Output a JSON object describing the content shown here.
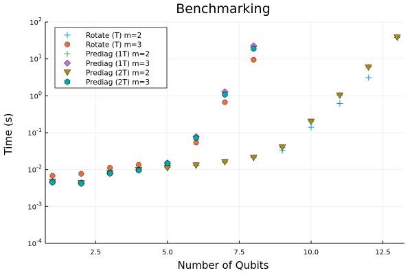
{
  "chart_data": {
    "type": "scatter",
    "title": "Benchmarking",
    "xlabel": "Number of Qubits",
    "ylabel": "Time (s)",
    "xlim": [
      0.75,
      13.25
    ],
    "ylim_log10": [
      -4,
      2
    ],
    "yscale": "log",
    "grid": true,
    "legend_position": "top-left",
    "x_ticks": [
      2.5,
      5.0,
      7.5,
      10.0,
      12.5
    ],
    "x_tick_labels": [
      "2.5",
      "5.0",
      "7.5",
      "10.0",
      "12.5"
    ],
    "y_ticks": [
      0.0001,
      0.001,
      0.01,
      0.1,
      1,
      10,
      100
    ],
    "y_tick_exponents": [
      "-4",
      "-3",
      "-2",
      "-1",
      "0",
      "1",
      "2"
    ],
    "y_tick_base": "10",
    "series": [
      {
        "name": "Rotate (T) m=2",
        "marker": "plus",
        "color": "#009AFA",
        "x": [
          1,
          2,
          3,
          4,
          5,
          6,
          7,
          8,
          9,
          10,
          11,
          12,
          13
        ],
        "y": [
          0.0048,
          0.0045,
          0.0082,
          0.0098,
          0.0115,
          0.013,
          0.016,
          0.021,
          0.033,
          0.14,
          0.62,
          3.1,
          38
        ]
      },
      {
        "name": "Rotate (T) m=3",
        "marker": "circle",
        "color": "#E26F46",
        "x": [
          1,
          2,
          3,
          4,
          5,
          6,
          7,
          8
        ],
        "y": [
          0.0068,
          0.0077,
          0.0112,
          0.0135,
          0.0145,
          0.054,
          0.67,
          9.5
        ]
      },
      {
        "name": "Prediag (1T) m=2",
        "marker": "plus",
        "color": "#3DA44E",
        "x": [
          1,
          2,
          3,
          4,
          5,
          6,
          7,
          8,
          9,
          10,
          11,
          12,
          13
        ],
        "y": [
          0.0047,
          0.0043,
          0.0081,
          0.0097,
          0.0112,
          0.013,
          0.016,
          0.021,
          0.039,
          0.2,
          1.02,
          5.9,
          38
        ]
      },
      {
        "name": "Prediag (1T) m=3",
        "marker": "diamond",
        "color": "#C271D2",
        "x": [
          1,
          2,
          3,
          4,
          5,
          6,
          7,
          8
        ],
        "y": [
          0.0046,
          0.0042,
          0.008,
          0.0098,
          0.015,
          0.078,
          1.28,
          22.5
        ]
      },
      {
        "name": "Prediag (2T) m=2",
        "marker": "triangle-down",
        "color": "#AC8D18",
        "x": [
          1,
          2,
          3,
          4,
          5,
          6,
          7,
          8,
          9,
          10,
          11,
          12,
          13
        ],
        "y": [
          0.0047,
          0.0043,
          0.0081,
          0.0097,
          0.011,
          0.013,
          0.016,
          0.021,
          0.04,
          0.2,
          1.02,
          5.9,
          38
        ]
      },
      {
        "name": "Prediag (2T) m=3",
        "marker": "hexagon",
        "color": "#00A9AD",
        "x": [
          1,
          2,
          3,
          4,
          5,
          6,
          7,
          8
        ],
        "y": [
          0.0045,
          0.0042,
          0.0078,
          0.0095,
          0.015,
          0.072,
          1.08,
          19
        ]
      }
    ]
  }
}
